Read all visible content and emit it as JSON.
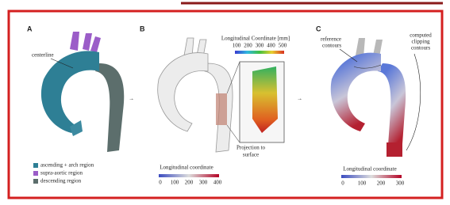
{
  "panels": [
    {
      "letter": "A",
      "annotation": "centerline",
      "legend": [
        "ascending + arch region",
        "supra-aortic region",
        "descending region"
      ]
    },
    {
      "letter": "B",
      "inset_title": "Longitudinal Coordinate [mm]",
      "inset_ticks": [
        "100",
        "200",
        "300",
        "400",
        "500"
      ],
      "annotation": [
        "Projection to",
        "surface"
      ],
      "colorbar_title": "Longitudinal coordinate",
      "colorbar_ticks": [
        "0",
        "100",
        "200",
        "300",
        "400"
      ]
    },
    {
      "letter": "C",
      "annotation_left": [
        "reference",
        "contours"
      ],
      "annotation_right": [
        "computed",
        "clipping",
        "contours"
      ],
      "colorbar_title": "Longitudinal coordinate",
      "colorbar_ticks": [
        "0",
        "100",
        "200",
        "300"
      ]
    }
  ]
}
